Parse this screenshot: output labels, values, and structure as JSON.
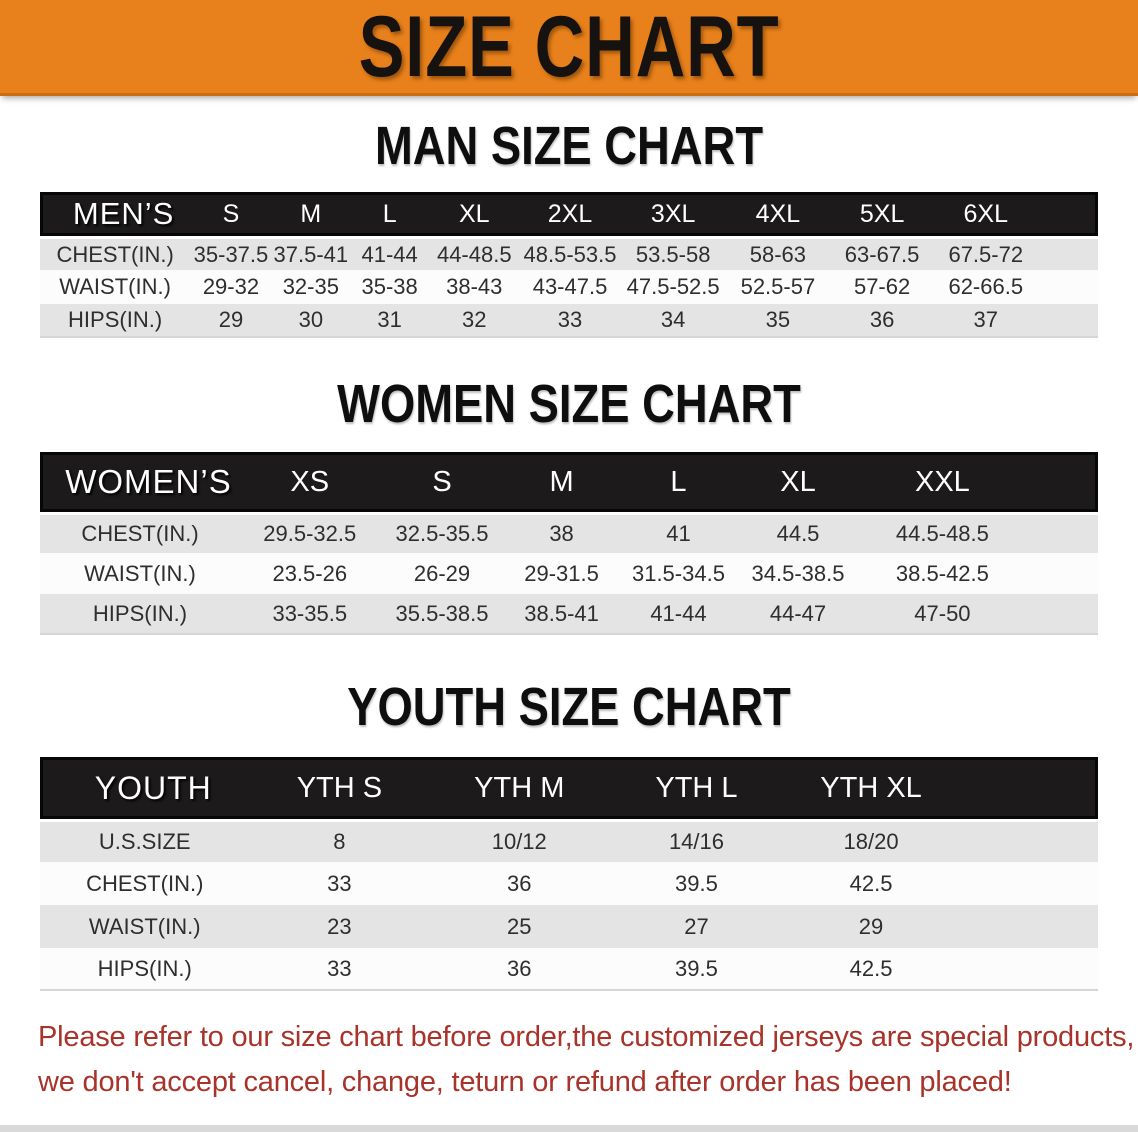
{
  "banner": {
    "title": "SIZE CHART"
  },
  "theme": {
    "banner_bg": "#E8811B",
    "table_header_bg": "#1c1a1b",
    "row_stripe": "#e4e4e4",
    "warning_text": "#A8332A"
  },
  "sections": [
    {
      "title": "MAN SIZE CHART",
      "header_label": "MEN’S",
      "columns": [
        "S",
        "M",
        "L",
        "XL",
        "2XL",
        "3XL",
        "4XL",
        "5XL",
        "6XL"
      ],
      "rows": [
        {
          "label": "CHEST(IN.)",
          "values": [
            "35-37.5",
            "37.5-41",
            "41-44",
            "44-48.5",
            "48.5-53.5",
            "53.5-58",
            "58-63",
            "63-67.5",
            "67.5-72"
          ]
        },
        {
          "label": "WAIST(IN.)",
          "values": [
            "29-32",
            "32-35",
            "35-38",
            "38-43",
            "43-47.5",
            "47.5-52.5",
            "52.5-57",
            "57-62",
            "62-66.5"
          ]
        },
        {
          "label": "HIPS(IN.)",
          "values": [
            "29",
            "30",
            "31",
            "32",
            "33",
            "34",
            "35",
            "36",
            "37"
          ]
        }
      ]
    },
    {
      "title": "WOMEN SIZE CHART",
      "header_label": "WOMEN’S",
      "columns": [
        "XS",
        "S",
        "M",
        "L",
        "XL",
        "XXL"
      ],
      "rows": [
        {
          "label": "CHEST(IN.)",
          "values": [
            "29.5-32.5",
            "32.5-35.5",
            "38",
            "41",
            "44.5",
            "44.5-48.5"
          ]
        },
        {
          "label": "WAIST(IN.)",
          "values": [
            "23.5-26",
            "26-29",
            "29-31.5",
            "31.5-34.5",
            "34.5-38.5",
            "38.5-42.5"
          ]
        },
        {
          "label": "HIPS(IN.)",
          "values": [
            "33-35.5",
            "35.5-38.5",
            "38.5-41",
            "41-44",
            "44-47",
            "47-50"
          ]
        }
      ]
    },
    {
      "title": "YOUTH SIZE CHART",
      "header_label": "YOUTH",
      "columns": [
        "YTH S",
        "YTH M",
        "YTH L",
        "YTH XL"
      ],
      "rows": [
        {
          "label": "U.S.SIZE",
          "values": [
            "8",
            "10/12",
            "14/16",
            "18/20"
          ]
        },
        {
          "label": "CHEST(IN.)",
          "values": [
            "33",
            "36",
            "39.5",
            "42.5"
          ]
        },
        {
          "label": "WAIST(IN.)",
          "values": [
            "23",
            "25",
            "27",
            "29"
          ]
        },
        {
          "label": "HIPS(IN.)",
          "values": [
            "33",
            "36",
            "39.5",
            "42.5"
          ]
        }
      ]
    }
  ],
  "disclaimer": {
    "line1": "Please refer to our size chart before order,the customized jerseys are special products,",
    "line2": "we don't accept cancel, change, teturn or refund after order has been placed!"
  }
}
